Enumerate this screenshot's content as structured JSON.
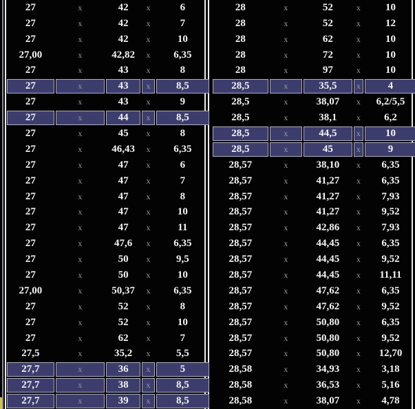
{
  "separator_label": "x",
  "colors": {
    "background": "#030304",
    "text": "#f4f4f4",
    "separator_text": "#9c9ca4",
    "highlight_fill": "#3d3d6d",
    "highlight_border": "#aeaec2",
    "border_line_bright": "#ececec",
    "border_line_dim": "#8c8c94",
    "corner_accent": "#d6c63a"
  },
  "tables": [
    {
      "id": "left",
      "rows": [
        {
          "values": [
            "27",
            "42",
            "6"
          ],
          "highlighted": false
        },
        {
          "values": [
            "27",
            "42",
            "7"
          ],
          "highlighted": false
        },
        {
          "values": [
            "27",
            "42",
            "10"
          ],
          "highlighted": false
        },
        {
          "values": [
            "27,00",
            "42,82",
            "6,35"
          ],
          "highlighted": false
        },
        {
          "values": [
            "27",
            "43",
            "8"
          ],
          "highlighted": false
        },
        {
          "values": [
            "27",
            "43",
            "8,5"
          ],
          "highlighted": true
        },
        {
          "values": [
            "27",
            "43",
            "9"
          ],
          "highlighted": false
        },
        {
          "values": [
            "27",
            "44",
            "8,5"
          ],
          "highlighted": true
        },
        {
          "values": [
            "27",
            "45",
            "8"
          ],
          "highlighted": false
        },
        {
          "values": [
            "27",
            "46,43",
            "6,35"
          ],
          "highlighted": false
        },
        {
          "values": [
            "27",
            "47",
            "6"
          ],
          "highlighted": false
        },
        {
          "values": [
            "27",
            "47",
            "7"
          ],
          "highlighted": false
        },
        {
          "values": [
            "27",
            "47",
            "8"
          ],
          "highlighted": false
        },
        {
          "values": [
            "27",
            "47",
            "10"
          ],
          "highlighted": false
        },
        {
          "values": [
            "27",
            "47",
            "11"
          ],
          "highlighted": false
        },
        {
          "values": [
            "27",
            "47,6",
            "6,35"
          ],
          "highlighted": false
        },
        {
          "values": [
            "27",
            "50",
            "9,5"
          ],
          "highlighted": false
        },
        {
          "values": [
            "27",
            "50",
            "10"
          ],
          "highlighted": false
        },
        {
          "values": [
            "27,00",
            "50,37",
            "6,35"
          ],
          "highlighted": false
        },
        {
          "values": [
            "27",
            "52",
            "8"
          ],
          "highlighted": false
        },
        {
          "values": [
            "27",
            "52",
            "10"
          ],
          "highlighted": false
        },
        {
          "values": [
            "27",
            "62",
            "7"
          ],
          "highlighted": false
        },
        {
          "values": [
            "27,5",
            "35,2",
            "5,5"
          ],
          "highlighted": false
        },
        {
          "values": [
            "27,7",
            "36",
            "5"
          ],
          "highlighted": true
        },
        {
          "values": [
            "27,7",
            "38",
            "8,5"
          ],
          "highlighted": true
        },
        {
          "values": [
            "27,7",
            "39",
            "8,5"
          ],
          "highlighted": true
        }
      ]
    },
    {
      "id": "right",
      "rows": [
        {
          "values": [
            "28",
            "52",
            "10"
          ],
          "highlighted": false
        },
        {
          "values": [
            "28",
            "52",
            "12"
          ],
          "highlighted": false
        },
        {
          "values": [
            "28",
            "62",
            "10"
          ],
          "highlighted": false
        },
        {
          "values": [
            "28",
            "72",
            "10"
          ],
          "highlighted": false
        },
        {
          "values": [
            "28",
            "97",
            "10"
          ],
          "highlighted": false
        },
        {
          "values": [
            "28,5",
            "35,5",
            "4"
          ],
          "highlighted": true
        },
        {
          "values": [
            "28,5",
            "38,07",
            "6,2/5,5"
          ],
          "highlighted": false
        },
        {
          "values": [
            "28,5",
            "38,1",
            "6,2"
          ],
          "highlighted": false
        },
        {
          "values": [
            "28,5",
            "44,5",
            "10"
          ],
          "highlighted": true
        },
        {
          "values": [
            "28,5",
            "45",
            "9"
          ],
          "highlighted": true
        },
        {
          "values": [
            "28,57",
            "38,10",
            "6,35"
          ],
          "highlighted": false
        },
        {
          "values": [
            "28,57",
            "41,27",
            "6,35"
          ],
          "highlighted": false
        },
        {
          "values": [
            "28,57",
            "41,27",
            "7,93"
          ],
          "highlighted": false
        },
        {
          "values": [
            "28,57",
            "41,27",
            "9,52"
          ],
          "highlighted": false
        },
        {
          "values": [
            "28,57",
            "42,86",
            "7,93"
          ],
          "highlighted": false
        },
        {
          "values": [
            "28,57",
            "44,45",
            "6,35"
          ],
          "highlighted": false
        },
        {
          "values": [
            "28,57",
            "44,45",
            "9,52"
          ],
          "highlighted": false
        },
        {
          "values": [
            "28,57",
            "44,45",
            "11,11"
          ],
          "highlighted": false
        },
        {
          "values": [
            "28,57",
            "47,62",
            "6,35"
          ],
          "highlighted": false
        },
        {
          "values": [
            "28,57",
            "47,62",
            "9,52"
          ],
          "highlighted": false
        },
        {
          "values": [
            "28,57",
            "50,80",
            "6,35"
          ],
          "highlighted": false
        },
        {
          "values": [
            "28,57",
            "50,80",
            "9,52"
          ],
          "highlighted": false
        },
        {
          "values": [
            "28,57",
            "50,80",
            "12,70"
          ],
          "highlighted": false
        },
        {
          "values": [
            "28,58",
            "34,93",
            "3,18"
          ],
          "highlighted": false
        },
        {
          "values": [
            "28,58",
            "36,53",
            "5,16"
          ],
          "highlighted": false
        },
        {
          "values": [
            "28,58",
            "38,07",
            "4,78"
          ],
          "highlighted": false
        }
      ]
    }
  ]
}
